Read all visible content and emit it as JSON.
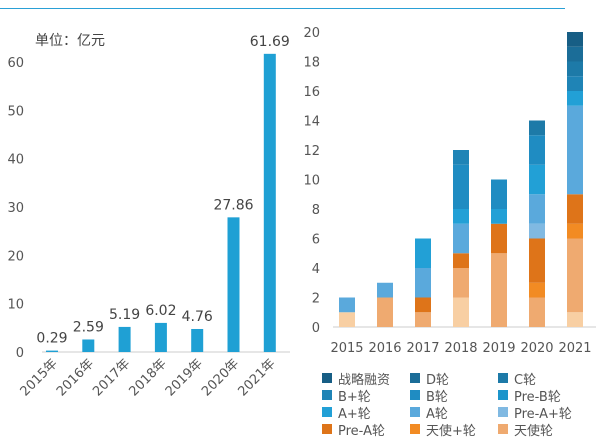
{
  "chart_data": [
    {
      "type": "bar",
      "unit_label": "单位：亿元",
      "categories": [
        "2015年",
        "2016年",
        "2017年",
        "2018年",
        "2019年",
        "2020年",
        "2021年"
      ],
      "values": [
        0.29,
        2.59,
        5.19,
        6.02,
        4.76,
        27.86,
        61.69
      ],
      "ylim": [
        0,
        60
      ],
      "yticks": [
        0,
        10,
        20,
        30,
        40,
        50,
        60
      ],
      "color": "#1fa0d4",
      "grid": false
    },
    {
      "type": "bar",
      "stacked": true,
      "categories": [
        "2015",
        "2016",
        "2017",
        "2018",
        "2019",
        "2020",
        "2021"
      ],
      "ylim": [
        0,
        20
      ],
      "yticks": [
        0,
        2,
        4,
        6,
        8,
        10,
        12,
        14,
        16,
        18,
        20
      ],
      "grid": false,
      "legend": "bottom",
      "series": [
        {
          "name": "",
          "color": "#f8cfa3",
          "values": [
            1,
            0,
            0,
            2,
            0,
            0,
            1
          ]
        },
        {
          "name": "天使轮",
          "color": "#efaa70",
          "values": [
            0,
            2,
            1,
            2,
            5,
            2,
            5
          ]
        },
        {
          "name": "天使+轮",
          "color": "#f28b23",
          "values": [
            0,
            0,
            0,
            0,
            0,
            1,
            1
          ]
        },
        {
          "name": "Pre-A轮",
          "color": "#de7419",
          "values": [
            0,
            0,
            1,
            1,
            2,
            3,
            2
          ]
        },
        {
          "name": "Pre-A+轮",
          "color": "#80b9e2",
          "values": [
            0,
            0,
            0,
            0,
            0,
            1,
            0
          ]
        },
        {
          "name": "A轮",
          "color": "#5aa9dc",
          "values": [
            1,
            1,
            2,
            2,
            0,
            2,
            6
          ]
        },
        {
          "name": "A+轮",
          "color": "#22a0d6",
          "values": [
            0,
            0,
            2,
            1,
            1,
            2,
            1
          ]
        },
        {
          "name": "Pre-B轮",
          "color": "#1c95cb",
          "values": [
            0,
            0,
            0,
            0,
            0,
            0,
            0
          ]
        },
        {
          "name": "B轮",
          "color": "#1f8cc2",
          "values": [
            0,
            0,
            0,
            3,
            2,
            2,
            0
          ]
        },
        {
          "name": "B+轮",
          "color": "#1f84b6",
          "values": [
            0,
            0,
            0,
            1,
            0,
            0,
            1
          ]
        },
        {
          "name": "C轮",
          "color": "#1d7aa8",
          "values": [
            0,
            0,
            0,
            0,
            0,
            1,
            1
          ]
        },
        {
          "name": "D轮",
          "color": "#1b6d98",
          "values": [
            0,
            0,
            0,
            0,
            0,
            0,
            1
          ]
        },
        {
          "name": "战略融资",
          "color": "#175e85",
          "values": [
            0,
            0,
            0,
            0,
            0,
            0,
            1
          ]
        }
      ],
      "legend_order": [
        "战略融资",
        "D轮",
        "C轮",
        "B+轮",
        "B轮",
        "Pre-B轮",
        "A+轮",
        "A轮",
        "Pre-A+轮",
        "Pre-A轮",
        "天使+轮",
        "天使轮"
      ]
    }
  ]
}
